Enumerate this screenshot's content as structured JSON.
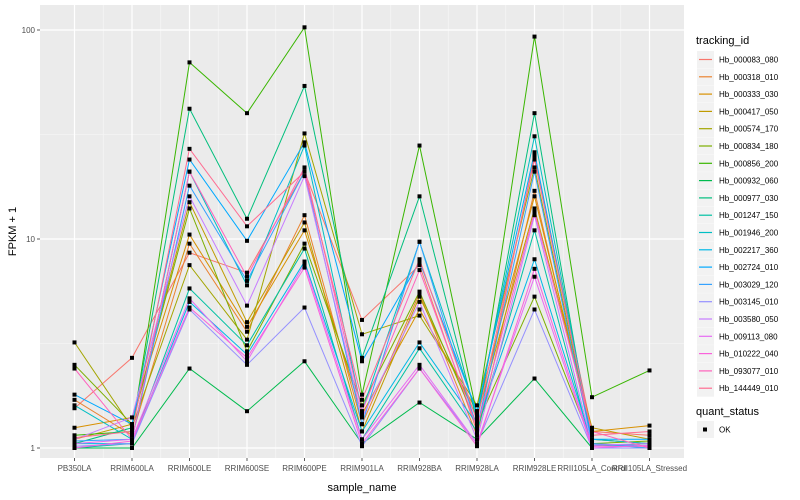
{
  "chart_data": {
    "type": "line",
    "title": "",
    "xlabel": "sample_name",
    "ylabel": "FPKM + 1",
    "yscale": "log10",
    "ylim": [
      0.9,
      130
    ],
    "yticks": [
      1,
      10,
      100
    ],
    "ytick_labels": [
      "1",
      "10",
      "100"
    ],
    "grid": true,
    "categories": [
      "PB350LA",
      "RRIM600LA",
      "RRIM600LE",
      "RRIM600SE",
      "RRIM600PE",
      "RRIM901LA",
      "RRIM928BA",
      "RRIM928LA",
      "RRIM928LE",
      "RRII105LA_Control",
      "RRII105LA_Stressed"
    ],
    "legend": {
      "position": "right",
      "color_title": "tracking_id",
      "shape_title": "quant_status",
      "shape_entries": [
        {
          "label": "OK",
          "shape": "square"
        }
      ]
    },
    "series": [
      {
        "name": "Hb_000083_080",
        "color": "#F8766D",
        "values": [
          1.55,
          2.7,
          8.6,
          6.9,
          21,
          4.1,
          7.5,
          1.2,
          25,
          1.2,
          1.15
        ]
      },
      {
        "name": "Hb_000318_010",
        "color": "#EA8331",
        "values": [
          1.7,
          1.15,
          9.5,
          3.6,
          13,
          1.3,
          5.5,
          1.15,
          17,
          1.1,
          1.05
        ]
      },
      {
        "name": "Hb_000333_030",
        "color": "#D89000",
        "values": [
          1.25,
          1.4,
          10.5,
          3.8,
          11,
          1.45,
          4.6,
          1.5,
          16,
          1.2,
          1.28
        ]
      },
      {
        "name": "Hb_000417_050",
        "color": "#C09B00",
        "values": [
          1.1,
          1.3,
          15,
          4.0,
          12,
          1.2,
          5.3,
          1.4,
          14,
          1.25,
          1.1
        ]
      },
      {
        "name": "Hb_000574_170",
        "color": "#A3A500",
        "values": [
          3.2,
          1.25,
          7.5,
          3.3,
          32,
          3.5,
          4.3,
          1.6,
          22,
          1.1,
          1.05
        ]
      },
      {
        "name": "Hb_000834_180",
        "color": "#7CAE00",
        "values": [
          2.5,
          1.3,
          14,
          2.9,
          9.5,
          1.6,
          5.6,
          1.3,
          5.3,
          1.05,
          1.08
        ]
      },
      {
        "name": "Hb_000856_200",
        "color": "#39B600",
        "values": [
          1.15,
          1.2,
          70,
          40,
          103,
          1.8,
          28,
          1.45,
          93,
          1.75,
          2.35
        ]
      },
      {
        "name": "Hb_000932_060",
        "color": "#00BB4E",
        "values": [
          1.0,
          1.0,
          2.4,
          1.5,
          2.6,
          1.05,
          1.65,
          1.1,
          2.15,
          1.0,
          1.0
        ]
      },
      {
        "name": "Hb_000977_030",
        "color": "#00BF7D",
        "values": [
          1.05,
          1.25,
          42,
          12.5,
          54,
          2.7,
          16,
          1.35,
          40,
          1.02,
          1.05
        ]
      },
      {
        "name": "Hb_001247_150",
        "color": "#00C1A3",
        "values": [
          1.0,
          1.05,
          5.8,
          3.1,
          9.0,
          1.1,
          3.0,
          1.2,
          11,
          1.0,
          1.0
        ]
      },
      {
        "name": "Hb_001946_200",
        "color": "#00BFC4",
        "values": [
          1.6,
          1.1,
          21,
          6.0,
          28,
          1.5,
          9.7,
          1.45,
          31,
          1.1,
          1.05
        ]
      },
      {
        "name": "Hb_002217_360",
        "color": "#00B8E7",
        "values": [
          1.05,
          1.05,
          5.0,
          2.8,
          7.8,
          1.2,
          3.2,
          1.3,
          8.0,
          1.05,
          1.0
        ]
      },
      {
        "name": "Hb_002724_010",
        "color": "#00A9FF",
        "values": [
          1.8,
          1.3,
          24,
          9.8,
          29,
          2.6,
          7.8,
          1.5,
          26,
          1.1,
          1.1
        ]
      },
      {
        "name": "Hb_003029_120",
        "color": "#35A2FF",
        "values": [
          1.08,
          1.1,
          18,
          6.3,
          21,
          1.3,
          9.7,
          1.25,
          21,
          1.05,
          1.02
        ]
      },
      {
        "name": "Hb_003145_010",
        "color": "#9590FF",
        "values": [
          1.02,
          1.05,
          4.6,
          2.5,
          4.7,
          1.02,
          2.4,
          1.05,
          4.6,
          1.0,
          1.0
        ]
      },
      {
        "name": "Hb_003580_050",
        "color": "#C77CFF",
        "values": [
          1.1,
          1.4,
          16,
          4.8,
          20,
          1.4,
          5.0,
          1.1,
          13,
          1.03,
          1.05
        ]
      },
      {
        "name": "Hb_009113_080",
        "color": "#E76BF3",
        "values": [
          1.05,
          1.1,
          5.2,
          2.6,
          7.6,
          1.1,
          2.5,
          1.05,
          6.6,
          1.0,
          1.03
        ]
      },
      {
        "name": "Hb_010222_040",
        "color": "#FA62DB",
        "values": [
          1.0,
          1.08,
          4.7,
          2.7,
          7.3,
          1.05,
          2.4,
          1.02,
          7.2,
          1.02,
          1.02
        ]
      },
      {
        "name": "Hb_093077_010",
        "color": "#FF62BC",
        "values": [
          2.4,
          1.1,
          21,
          6.6,
          22,
          1.5,
          7.1,
          1.25,
          13.5,
          1.2,
          1.0
        ]
      },
      {
        "name": "Hb_144449_010",
        "color": "#FF6C91",
        "values": [
          1.12,
          1.2,
          27,
          11.5,
          21,
          1.7,
          8.0,
          1.35,
          24,
          1.15,
          1.2
        ]
      }
    ]
  }
}
